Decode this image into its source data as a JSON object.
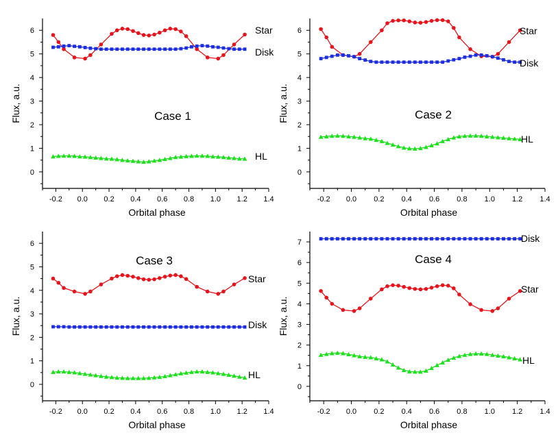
{
  "chart_data": [
    {
      "type": "line",
      "annotation": "Case 1",
      "xlabel": "Orbital phase",
      "ylabel": "Flux, a.u.",
      "xlim": [
        -0.3,
        1.4
      ],
      "ylim": [
        -0.7,
        6.5
      ],
      "xticks": [
        "-0.2",
        "0.0",
        "0.2",
        "0.4",
        "0.6",
        "0.8",
        "1.0",
        "1.2",
        "1.4"
      ],
      "yticks": [
        "0",
        "1",
        "2",
        "3",
        "4",
        "5",
        "6"
      ],
      "series": [
        {
          "name": "Star",
          "color": "#e8141c",
          "marker": "circle",
          "x": [
            -0.22,
            -0.18,
            -0.14,
            -0.06,
            0.02,
            0.06,
            0.14,
            0.22,
            0.26,
            0.3,
            0.34,
            0.38,
            0.42,
            0.46,
            0.5,
            0.54,
            0.58,
            0.62,
            0.66,
            0.7,
            0.74,
            0.78,
            0.86,
            0.94,
            1.02,
            1.06,
            1.14,
            1.22
          ],
          "y": [
            5.8,
            5.5,
            5.2,
            4.85,
            4.8,
            4.95,
            5.4,
            5.85,
            6.0,
            6.07,
            6.05,
            5.97,
            5.88,
            5.8,
            5.78,
            5.82,
            5.9,
            6.0,
            6.07,
            6.05,
            5.95,
            5.75,
            5.2,
            4.85,
            4.8,
            4.95,
            5.4,
            5.82
          ]
        },
        {
          "name": "Disk",
          "color": "#1c2ee0",
          "marker": "square",
          "x": [
            -0.22,
            -0.18,
            -0.14,
            -0.1,
            -0.06,
            -0.02,
            0.02,
            0.06,
            0.1,
            0.14,
            0.18,
            0.22,
            0.26,
            0.3,
            0.34,
            0.38,
            0.42,
            0.46,
            0.5,
            0.54,
            0.58,
            0.62,
            0.66,
            0.7,
            0.74,
            0.78,
            0.82,
            0.86,
            0.9,
            0.94,
            0.98,
            1.02,
            1.06,
            1.1,
            1.14,
            1.18,
            1.22
          ],
          "y": [
            5.28,
            5.3,
            5.33,
            5.35,
            5.32,
            5.3,
            5.27,
            5.24,
            5.22,
            5.2,
            5.2,
            5.2,
            5.2,
            5.2,
            5.2,
            5.2,
            5.2,
            5.2,
            5.2,
            5.2,
            5.2,
            5.2,
            5.2,
            5.2,
            5.22,
            5.25,
            5.3,
            5.33,
            5.35,
            5.33,
            5.3,
            5.28,
            5.25,
            5.22,
            5.2,
            5.2,
            5.2
          ]
        },
        {
          "name": "HL",
          "color": "#1ee01e",
          "marker": "triangle",
          "x": [
            -0.22,
            -0.18,
            -0.14,
            -0.1,
            -0.06,
            -0.02,
            0.02,
            0.06,
            0.1,
            0.14,
            0.18,
            0.22,
            0.26,
            0.3,
            0.34,
            0.38,
            0.42,
            0.46,
            0.5,
            0.54,
            0.58,
            0.62,
            0.66,
            0.7,
            0.74,
            0.78,
            0.82,
            0.86,
            0.9,
            0.94,
            0.98,
            1.02,
            1.06,
            1.1,
            1.14,
            1.18,
            1.22
          ],
          "y": [
            0.65,
            0.67,
            0.68,
            0.68,
            0.67,
            0.65,
            0.64,
            0.62,
            0.6,
            0.58,
            0.56,
            0.55,
            0.53,
            0.5,
            0.48,
            0.46,
            0.44,
            0.42,
            0.44,
            0.47,
            0.5,
            0.54,
            0.58,
            0.62,
            0.64,
            0.66,
            0.67,
            0.68,
            0.68,
            0.67,
            0.65,
            0.64,
            0.62,
            0.6,
            0.58,
            0.56,
            0.55
          ]
        }
      ]
    },
    {
      "type": "line",
      "annotation": "Case 2",
      "xlabel": "Orbital phase",
      "ylabel": "Flux, a.u.",
      "xlim": [
        -0.3,
        1.4
      ],
      "ylim": [
        -0.7,
        6.5
      ],
      "xticks": [
        "-0.2",
        "0.0",
        "0.2",
        "0.4",
        "0.6",
        "0.8",
        "1.0",
        "1.2",
        "1.4"
      ],
      "yticks": [
        "0",
        "1",
        "2",
        "3",
        "4",
        "5",
        "6"
      ],
      "series": [
        {
          "name": "Star",
          "color": "#e8141c",
          "marker": "circle",
          "x": [
            -0.22,
            -0.18,
            -0.14,
            -0.06,
            0.02,
            0.06,
            0.14,
            0.22,
            0.26,
            0.3,
            0.34,
            0.38,
            0.42,
            0.46,
            0.5,
            0.54,
            0.58,
            0.62,
            0.66,
            0.7,
            0.74,
            0.78,
            0.86,
            0.94,
            1.02,
            1.06,
            1.14,
            1.22
          ],
          "y": [
            6.05,
            5.7,
            5.3,
            4.95,
            4.88,
            5.0,
            5.5,
            6.0,
            6.3,
            6.4,
            6.42,
            6.42,
            6.38,
            6.33,
            6.32,
            6.35,
            6.4,
            6.43,
            6.43,
            6.38,
            6.1,
            5.7,
            5.2,
            4.9,
            4.88,
            5.0,
            5.5,
            6.0
          ]
        },
        {
          "name": "Disk",
          "color": "#1c2ee0",
          "marker": "square",
          "x": [
            -0.22,
            -0.18,
            -0.14,
            -0.1,
            -0.06,
            -0.02,
            0.02,
            0.06,
            0.1,
            0.14,
            0.18,
            0.22,
            0.26,
            0.3,
            0.34,
            0.38,
            0.42,
            0.46,
            0.5,
            0.54,
            0.58,
            0.62,
            0.66,
            0.7,
            0.74,
            0.78,
            0.82,
            0.86,
            0.9,
            0.94,
            0.98,
            1.02,
            1.06,
            1.1,
            1.14,
            1.18,
            1.22
          ],
          "y": [
            4.8,
            4.85,
            4.9,
            4.95,
            4.95,
            4.92,
            4.88,
            4.8,
            4.74,
            4.68,
            4.65,
            4.65,
            4.65,
            4.65,
            4.65,
            4.65,
            4.65,
            4.65,
            4.65,
            4.65,
            4.65,
            4.65,
            4.65,
            4.7,
            4.75,
            4.8,
            4.86,
            4.9,
            4.95,
            4.95,
            4.92,
            4.88,
            4.82,
            4.75,
            4.68,
            4.65,
            4.65
          ]
        },
        {
          "name": "HL",
          "color": "#1ee01e",
          "marker": "triangle",
          "x": [
            -0.22,
            -0.18,
            -0.14,
            -0.1,
            -0.06,
            -0.02,
            0.02,
            0.06,
            0.1,
            0.14,
            0.18,
            0.22,
            0.26,
            0.3,
            0.34,
            0.38,
            0.42,
            0.46,
            0.5,
            0.54,
            0.58,
            0.62,
            0.66,
            0.7,
            0.74,
            0.78,
            0.82,
            0.86,
            0.9,
            0.94,
            0.98,
            1.02,
            1.06,
            1.1,
            1.14,
            1.18,
            1.22
          ],
          "y": [
            1.48,
            1.5,
            1.52,
            1.53,
            1.52,
            1.5,
            1.48,
            1.45,
            1.42,
            1.4,
            1.35,
            1.3,
            1.22,
            1.15,
            1.08,
            1.02,
            0.99,
            0.98,
            1.0,
            1.05,
            1.12,
            1.2,
            1.3,
            1.38,
            1.45,
            1.5,
            1.52,
            1.53,
            1.53,
            1.52,
            1.5,
            1.48,
            1.46,
            1.44,
            1.42,
            1.4,
            1.38
          ]
        }
      ]
    },
    {
      "type": "line",
      "annotation": "Case 3",
      "xlabel": "Orbital phase",
      "ylabel": "Flux, a.u.",
      "xlim": [
        -0.3,
        1.4
      ],
      "ylim": [
        -0.7,
        6.5
      ],
      "xticks": [
        "-0.2",
        "0.0",
        "0.2",
        "0.4",
        "0.6",
        "0.8",
        "1.0",
        "1.2",
        "1.4"
      ],
      "yticks": [
        "0",
        "1",
        "2",
        "3",
        "4",
        "5",
        "6"
      ],
      "series": [
        {
          "name": "Star",
          "color": "#e8141c",
          "marker": "circle",
          "x": [
            -0.22,
            -0.18,
            -0.14,
            -0.06,
            0.02,
            0.06,
            0.14,
            0.22,
            0.26,
            0.3,
            0.34,
            0.38,
            0.42,
            0.46,
            0.5,
            0.54,
            0.58,
            0.62,
            0.66,
            0.7,
            0.74,
            0.78,
            0.86,
            0.94,
            1.02,
            1.06,
            1.14,
            1.22
          ],
          "y": [
            4.5,
            4.32,
            4.1,
            3.95,
            3.85,
            3.95,
            4.25,
            4.5,
            4.6,
            4.65,
            4.62,
            4.58,
            4.52,
            4.47,
            4.45,
            4.47,
            4.52,
            4.58,
            4.63,
            4.65,
            4.6,
            4.48,
            4.15,
            3.95,
            3.85,
            3.95,
            4.25,
            4.52
          ]
        },
        {
          "name": "Disk",
          "color": "#1c2ee0",
          "marker": "square",
          "x": [
            -0.22,
            -0.18,
            -0.14,
            -0.1,
            -0.06,
            -0.02,
            0.02,
            0.06,
            0.1,
            0.14,
            0.18,
            0.22,
            0.26,
            0.3,
            0.34,
            0.38,
            0.42,
            0.46,
            0.5,
            0.54,
            0.58,
            0.62,
            0.66,
            0.7,
            0.74,
            0.78,
            0.82,
            0.86,
            0.9,
            0.94,
            0.98,
            1.02,
            1.06,
            1.1,
            1.14,
            1.18,
            1.22
          ],
          "y": [
            2.45,
            2.45,
            2.45,
            2.44,
            2.44,
            2.44,
            2.44,
            2.44,
            2.44,
            2.44,
            2.44,
            2.44,
            2.44,
            2.44,
            2.44,
            2.44,
            2.44,
            2.44,
            2.44,
            2.44,
            2.44,
            2.44,
            2.44,
            2.44,
            2.44,
            2.44,
            2.44,
            2.44,
            2.44,
            2.44,
            2.44,
            2.44,
            2.44,
            2.44,
            2.44,
            2.44,
            2.44
          ]
        },
        {
          "name": "HL",
          "color": "#1ee01e",
          "marker": "triangle",
          "x": [
            -0.22,
            -0.18,
            -0.14,
            -0.1,
            -0.06,
            -0.02,
            0.02,
            0.06,
            0.1,
            0.14,
            0.18,
            0.22,
            0.26,
            0.3,
            0.34,
            0.38,
            0.42,
            0.46,
            0.5,
            0.54,
            0.58,
            0.62,
            0.66,
            0.7,
            0.74,
            0.78,
            0.82,
            0.86,
            0.9,
            0.94,
            0.98,
            1.02,
            1.06,
            1.1,
            1.14,
            1.18,
            1.22
          ],
          "y": [
            0.52,
            0.54,
            0.54,
            0.52,
            0.5,
            0.47,
            0.44,
            0.41,
            0.38,
            0.35,
            0.32,
            0.3,
            0.28,
            0.27,
            0.26,
            0.26,
            0.26,
            0.26,
            0.27,
            0.29,
            0.31,
            0.34,
            0.38,
            0.42,
            0.46,
            0.49,
            0.52,
            0.54,
            0.54,
            0.52,
            0.5,
            0.47,
            0.44,
            0.4,
            0.36,
            0.32,
            0.28
          ]
        }
      ]
    },
    {
      "type": "line",
      "annotation": "Case 4",
      "xlabel": "Orbital phase",
      "ylabel": "Flux, a.u.",
      "xlim": [
        -0.3,
        1.4
      ],
      "ylim": [
        -0.7,
        7.5
      ],
      "xticks": [
        "-0.2",
        "0.0",
        "0.2",
        "0.4",
        "0.6",
        "0.8",
        "1.0",
        "1.2",
        "1.4"
      ],
      "yticks": [
        "0",
        "1",
        "2",
        "3",
        "4",
        "5",
        "6",
        "7"
      ],
      "series": [
        {
          "name": "Star",
          "color": "#e8141c",
          "marker": "circle",
          "x": [
            -0.22,
            -0.18,
            -0.14,
            -0.06,
            0.02,
            0.06,
            0.14,
            0.22,
            0.26,
            0.3,
            0.34,
            0.38,
            0.42,
            0.46,
            0.5,
            0.54,
            0.58,
            0.62,
            0.66,
            0.7,
            0.74,
            0.78,
            0.86,
            0.94,
            1.02,
            1.06,
            1.14,
            1.22
          ],
          "y": [
            4.62,
            4.3,
            4.0,
            3.7,
            3.65,
            3.78,
            4.25,
            4.7,
            4.85,
            4.9,
            4.88,
            4.82,
            4.76,
            4.72,
            4.7,
            4.72,
            4.78,
            4.85,
            4.9,
            4.88,
            4.75,
            4.45,
            3.98,
            3.7,
            3.65,
            3.78,
            4.25,
            4.62
          ]
        },
        {
          "name": "Disk",
          "color": "#1c2ee0",
          "marker": "square",
          "x": [
            -0.22,
            -0.18,
            -0.14,
            -0.1,
            -0.06,
            -0.02,
            0.02,
            0.06,
            0.1,
            0.14,
            0.18,
            0.22,
            0.26,
            0.3,
            0.34,
            0.38,
            0.42,
            0.46,
            0.5,
            0.54,
            0.58,
            0.62,
            0.66,
            0.7,
            0.74,
            0.78,
            0.82,
            0.86,
            0.9,
            0.94,
            0.98,
            1.02,
            1.06,
            1.1,
            1.14,
            1.18,
            1.22
          ],
          "y": [
            7.15,
            7.15,
            7.15,
            7.15,
            7.15,
            7.15,
            7.15,
            7.15,
            7.15,
            7.15,
            7.15,
            7.15,
            7.15,
            7.15,
            7.15,
            7.15,
            7.15,
            7.15,
            7.15,
            7.15,
            7.15,
            7.15,
            7.15,
            7.15,
            7.15,
            7.15,
            7.15,
            7.15,
            7.15,
            7.15,
            7.15,
            7.15,
            7.15,
            7.15,
            7.15,
            7.15,
            7.15
          ]
        },
        {
          "name": "HL",
          "color": "#1ee01e",
          "marker": "triangle",
          "x": [
            -0.22,
            -0.18,
            -0.14,
            -0.1,
            -0.06,
            -0.02,
            0.02,
            0.06,
            0.1,
            0.14,
            0.18,
            0.22,
            0.26,
            0.3,
            0.34,
            0.38,
            0.42,
            0.46,
            0.5,
            0.54,
            0.58,
            0.62,
            0.66,
            0.7,
            0.74,
            0.78,
            0.82,
            0.86,
            0.9,
            0.94,
            0.98,
            1.02,
            1.06,
            1.1,
            1.14,
            1.18,
            1.22
          ],
          "y": [
            1.52,
            1.56,
            1.6,
            1.62,
            1.6,
            1.55,
            1.5,
            1.45,
            1.42,
            1.4,
            1.35,
            1.3,
            1.2,
            1.05,
            0.9,
            0.78,
            0.72,
            0.7,
            0.7,
            0.75,
            0.88,
            1.02,
            1.15,
            1.28,
            1.38,
            1.46,
            1.52,
            1.56,
            1.58,
            1.58,
            1.56,
            1.52,
            1.48,
            1.45,
            1.4,
            1.35,
            1.3
          ]
        }
      ]
    }
  ]
}
